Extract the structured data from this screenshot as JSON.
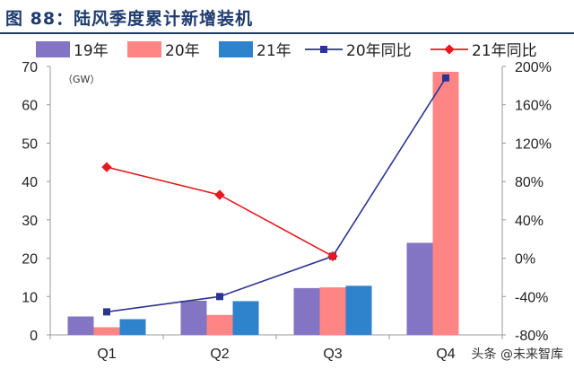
{
  "page": {
    "title": "图 88：陆风季度累计新增装机",
    "watermark": "头条 @未来智库"
  },
  "colors": {
    "s19": "#8474c4",
    "s20": "#ff8585",
    "s21": "#2f82cc",
    "yoy20": "#2c3491",
    "yoy21": "#e8181e",
    "axis": "#999999"
  },
  "chart_data": {
    "type": "bar",
    "categories": [
      "Q1",
      "Q2",
      "Q3",
      "Q4"
    ],
    "unit_label": "（GW）",
    "ylim": [
      0,
      70
    ],
    "yticks": [
      "0",
      "10",
      "20",
      "30",
      "40",
      "50",
      "60",
      "70"
    ],
    "y2lim": [
      -80,
      200
    ],
    "y2ticks": [
      "-80%",
      "-40%",
      "0%",
      "40%",
      "80%",
      "120%",
      "160%",
      "200%"
    ],
    "series": [
      {
        "name": "19年",
        "kind": "bar",
        "values": [
          4.8,
          8.9,
          12.2,
          24
        ]
      },
      {
        "name": "20年",
        "kind": "bar",
        "values": [
          2,
          5.2,
          12.4,
          68.6
        ]
      },
      {
        "name": "21年",
        "kind": "bar",
        "values": [
          4.1,
          8.8,
          12.8,
          null
        ]
      },
      {
        "name": "20年同比",
        "kind": "line",
        "axis": "right",
        "values": [
          -56,
          -40,
          2,
          188
        ]
      },
      {
        "name": "21年同比",
        "kind": "line",
        "axis": "right",
        "values": [
          95,
          66,
          2,
          null
        ]
      }
    ],
    "legend_position": "top"
  }
}
